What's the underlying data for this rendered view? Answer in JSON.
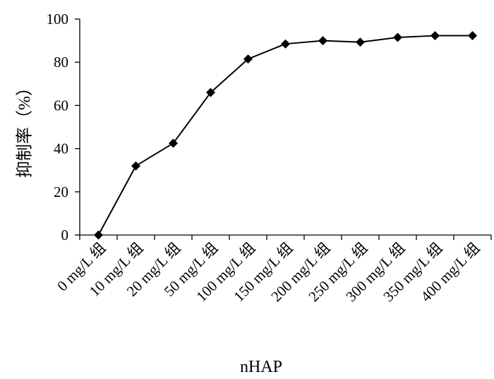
{
  "chart_data": {
    "type": "line",
    "title": "",
    "xlabel": "nHAP",
    "ylabel": "抑制率（%）",
    "categories": [
      "0 mg/L 组",
      "10 mg/L 组",
      "20 mg/L 组",
      "50 mg/L 组",
      "100 mg/L 组",
      "150 mg/L 组",
      "200 mg/L 组",
      "250 mg/L 组",
      "300 mg/L 组",
      "350 mg/L 组",
      "400 mg/L 组"
    ],
    "series": [
      {
        "values": [
          0,
          32,
          42.5,
          66,
          81.5,
          88.5,
          90,
          89.3,
          91.5,
          92.3,
          92.3
        ]
      }
    ],
    "ylim": [
      0,
      100
    ],
    "yticks": [
      0,
      20,
      40,
      60,
      80,
      100
    ],
    "grid": false,
    "marker": "diamond",
    "colors": {
      "line": "#000000",
      "marker": "#000000"
    }
  }
}
